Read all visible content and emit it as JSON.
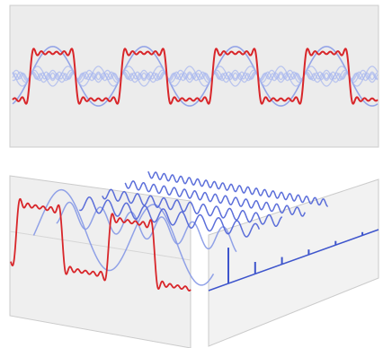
{
  "colors": {
    "background": "#ffffff",
    "panel_fill": "#ececec",
    "panel_fill_light": "#f4f4f4",
    "panel_edge": "#c8c8c8",
    "square_wave": "#d8262a",
    "harmonic_light": "#a9b8ef",
    "harmonic_mid": "#8598e6",
    "harmonic_dark": "#4a5fd6",
    "spectrum": "#3e55cc"
  },
  "diagram": {
    "harmonic_orders": [
      1,
      3,
      5,
      7,
      9,
      11
    ],
    "spectrum_amplitudes": [
      1,
      0.333,
      0.2,
      0.143,
      0.111,
      0.091
    ]
  }
}
